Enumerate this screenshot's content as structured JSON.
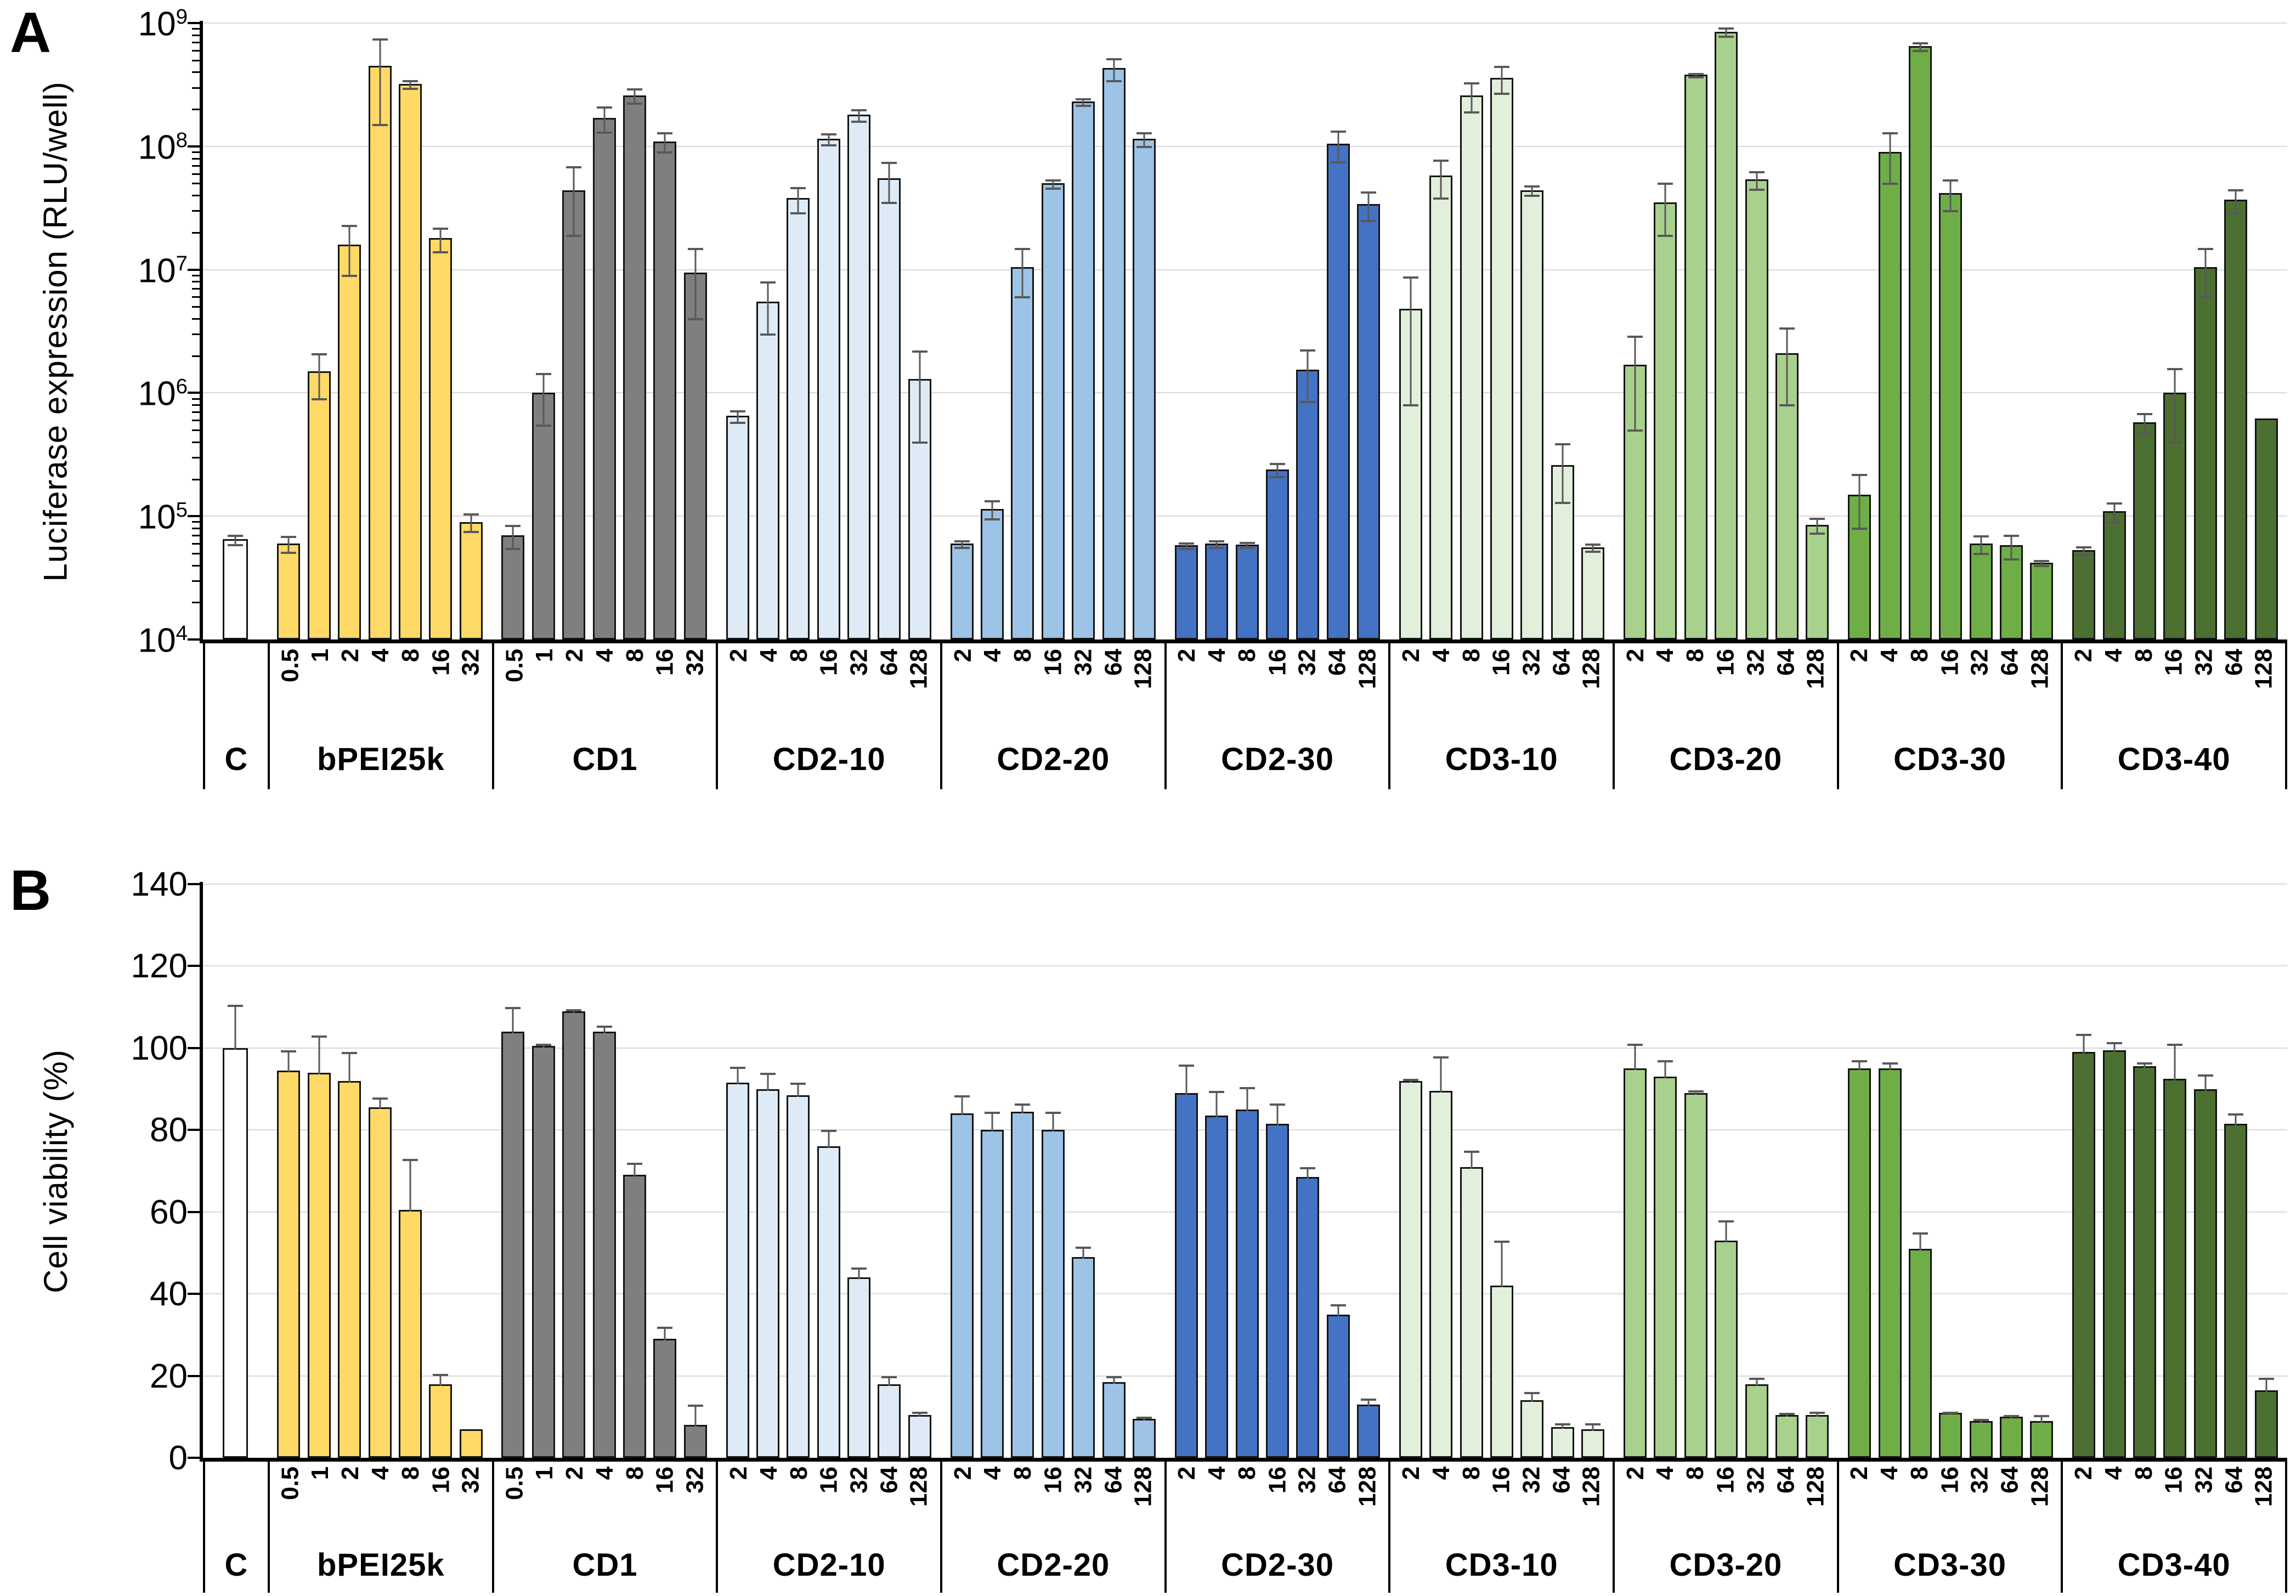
{
  "chart_data": [
    {
      "id": "A",
      "type": "bar",
      "panel_letter": "A",
      "ylabel": "Luciferase expression (RLU/well)",
      "yscale": "log",
      "ylim": [
        10000,
        1000000000
      ],
      "ytick_base": "10",
      "ytick_exponents": [
        "9",
        "8",
        "7",
        "6",
        "5",
        "4"
      ],
      "grid": "horizontal",
      "legend": "none",
      "error_bars": "both",
      "groups": [
        {
          "label": "C",
          "color": "#FFFFFF",
          "doses": [],
          "values": [
            65000
          ],
          "errors_up": [
            6000
          ]
        },
        {
          "label": "bPEI25k",
          "color": "#FFD966",
          "doses": [
            "0.5",
            "1",
            "2",
            "4",
            "8",
            "16",
            "32"
          ],
          "values": [
            60000,
            1500000,
            16000000,
            450000000,
            320000000,
            18000000,
            90000
          ],
          "errors_up": [
            9000,
            600000,
            7000000,
            300000000,
            25000000,
            4000000,
            15000
          ]
        },
        {
          "label": "CD1",
          "color": "#7F7F7F",
          "doses": [
            "0.5",
            "1",
            "2",
            "4",
            "8",
            "16",
            "32"
          ],
          "values": [
            70000,
            1000000,
            44000000,
            170000000,
            260000000,
            110000000,
            9500000
          ],
          "errors_up": [
            15000,
            450000,
            25000000,
            40000000,
            35000000,
            20000000,
            5500000
          ]
        },
        {
          "label": "CD2-10",
          "color": "#DEEBF7",
          "doses": [
            "2",
            "4",
            "8",
            "16",
            "32",
            "64",
            "128"
          ],
          "values": [
            650000,
            5500000,
            38000000,
            115000000,
            180000000,
            55000000,
            1300000
          ],
          "errors_up": [
            70000,
            2500000,
            9000000,
            12000000,
            20000000,
            20000000,
            900000
          ]
        },
        {
          "label": "CD2-20",
          "color": "#9DC3E6",
          "doses": [
            "2",
            "4",
            "8",
            "16",
            "32",
            "64",
            "128"
          ],
          "values": [
            60000,
            115000,
            10500000,
            50000000,
            230000000,
            430000000,
            115000000
          ],
          "errors_up": [
            4000,
            20000,
            4500000,
            4000000,
            15000000,
            90000000,
            15000000
          ]
        },
        {
          "label": "CD2-30",
          "color": "#4472C4",
          "doses": [
            "2",
            "4",
            "8",
            "16",
            "32",
            "64",
            "128"
          ],
          "values": [
            58000,
            60000,
            59000,
            240000,
            1550000,
            105000000,
            34000000
          ],
          "errors_up": [
            3000,
            4000,
            3000,
            30000,
            700000,
            30000000,
            9000000
          ]
        },
        {
          "label": "CD3-10",
          "color": "#E2EFDA",
          "doses": [
            "2",
            "4",
            "8",
            "16",
            "32",
            "64",
            "128"
          ],
          "values": [
            4800000,
            58000000,
            260000000,
            360000000,
            44000000,
            260000,
            56000
          ],
          "errors_up": [
            4000000,
            20000000,
            70000000,
            90000000,
            4000000,
            130000,
            4000
          ]
        },
        {
          "label": "CD3-20",
          "color": "#A9D18E",
          "doses": [
            "2",
            "4",
            "8",
            "16",
            "32",
            "64",
            "128"
          ],
          "values": [
            1700000,
            35000000,
            380000000,
            850000000,
            54000000,
            2100000,
            85000
          ],
          "errors_up": [
            1200000,
            16000000,
            15000000,
            70000000,
            9000000,
            1300000,
            12000
          ]
        },
        {
          "label": "CD3-30",
          "color": "#6FAD47",
          "doses": [
            "2",
            "4",
            "8",
            "16",
            "32",
            "64",
            "128"
          ],
          "values": [
            150000,
            90000000,
            650000000,
            42000000,
            60000,
            58000,
            42000
          ],
          "errors_up": [
            70000,
            40000000,
            50000000,
            12000000,
            10000,
            13000,
            2000
          ]
        },
        {
          "label": "CD3-40",
          "color": "#4C7031",
          "doses": [
            "2",
            "4",
            "8",
            "16",
            "32",
            "64",
            "128"
          ],
          "values": [
            53000,
            110000,
            580000,
            1000000,
            10500000,
            37000000,
            620000
          ],
          "errors_up": [
            4000,
            20000,
            110000,
            600000,
            4500000,
            8000000,
            0
          ]
        }
      ]
    },
    {
      "id": "B",
      "type": "bar",
      "panel_letter": "B",
      "ylabel": "Cell viability (%)",
      "yscale": "linear",
      "ylim": [
        0,
        140
      ],
      "yticks": [
        140,
        120,
        100,
        80,
        60,
        40,
        20,
        0
      ],
      "grid": "horizontal",
      "legend": "none",
      "error_bars": "up",
      "groups": [
        {
          "label": "C",
          "color": "#FFFFFF",
          "doses": [],
          "values": [
            100
          ],
          "errors_up": [
            10.5
          ]
        },
        {
          "label": "bPEI25k",
          "color": "#FFD966",
          "doses": [
            "0.5",
            "1",
            "2",
            "4",
            "8",
            "16",
            "32"
          ],
          "values": [
            94.5,
            94,
            92,
            85.5,
            60.5,
            18,
            7
          ],
          "errors_up": [
            5,
            9,
            7,
            2.5,
            12.5,
            2.5,
            0
          ]
        },
        {
          "label": "CD1",
          "color": "#7F7F7F",
          "doses": [
            "0.5",
            "1",
            "2",
            "4",
            "8",
            "16",
            "32"
          ],
          "values": [
            104,
            100.5,
            109,
            104,
            69,
            29,
            8
          ],
          "errors_up": [
            6,
            0.5,
            0.5,
            1.5,
            3,
            3,
            5
          ]
        },
        {
          "label": "CD2-10",
          "color": "#DEEBF7",
          "doses": [
            "2",
            "4",
            "8",
            "16",
            "32",
            "64",
            "128"
          ],
          "values": [
            91.5,
            90,
            88.5,
            76,
            44,
            18,
            10.5
          ],
          "errors_up": [
            4,
            4,
            3,
            4,
            2.5,
            2,
            0.8
          ]
        },
        {
          "label": "CD2-20",
          "color": "#9DC3E6",
          "doses": [
            "2",
            "4",
            "8",
            "16",
            "32",
            "64",
            "128"
          ],
          "values": [
            84,
            80,
            84.5,
            80,
            49,
            18.5,
            9.5
          ],
          "errors_up": [
            4.5,
            4.5,
            2,
            4.5,
            2.5,
            1.5,
            0.5
          ]
        },
        {
          "label": "CD2-30",
          "color": "#4472C4",
          "doses": [
            "2",
            "4",
            "8",
            "16",
            "32",
            "64",
            "128"
          ],
          "values": [
            89,
            83.5,
            85,
            81.5,
            68.5,
            35,
            13
          ],
          "errors_up": [
            7,
            6,
            5.5,
            5,
            2.5,
            2.5,
            1.5
          ]
        },
        {
          "label": "CD3-10",
          "color": "#E2EFDA",
          "doses": [
            "2",
            "4",
            "8",
            "16",
            "32",
            "64",
            "128"
          ],
          "values": [
            92,
            89.5,
            71,
            42,
            14,
            7.5,
            7
          ],
          "errors_up": [
            0.5,
            8.5,
            4,
            11,
            2,
            1,
            1.5
          ]
        },
        {
          "label": "CD3-20",
          "color": "#A9D18E",
          "doses": [
            "2",
            "4",
            "8",
            "16",
            "32",
            "64",
            "128"
          ],
          "values": [
            95,
            93,
            89,
            53,
            18,
            10.5,
            10.5
          ],
          "errors_up": [
            6,
            4,
            0.7,
            5,
            1.5,
            0.5,
            0.8
          ]
        },
        {
          "label": "CD3-30",
          "color": "#6FAD47",
          "doses": [
            "2",
            "4",
            "8",
            "16",
            "32",
            "64",
            "128"
          ],
          "values": [
            95,
            95,
            51,
            11,
            9,
            10,
            9
          ],
          "errors_up": [
            2,
            1.5,
            4,
            0.3,
            0.5,
            0.5,
            1.5
          ]
        },
        {
          "label": "CD3-40",
          "color": "#4C7031",
          "doses": [
            "2",
            "4",
            "8",
            "16",
            "32",
            "64",
            "128"
          ],
          "values": [
            99,
            99.5,
            95.5,
            92.5,
            90,
            81.5,
            16.5
          ],
          "errors_up": [
            4.5,
            2,
            1,
            8.5,
            3.5,
            2.5,
            3
          ]
        }
      ]
    }
  ]
}
